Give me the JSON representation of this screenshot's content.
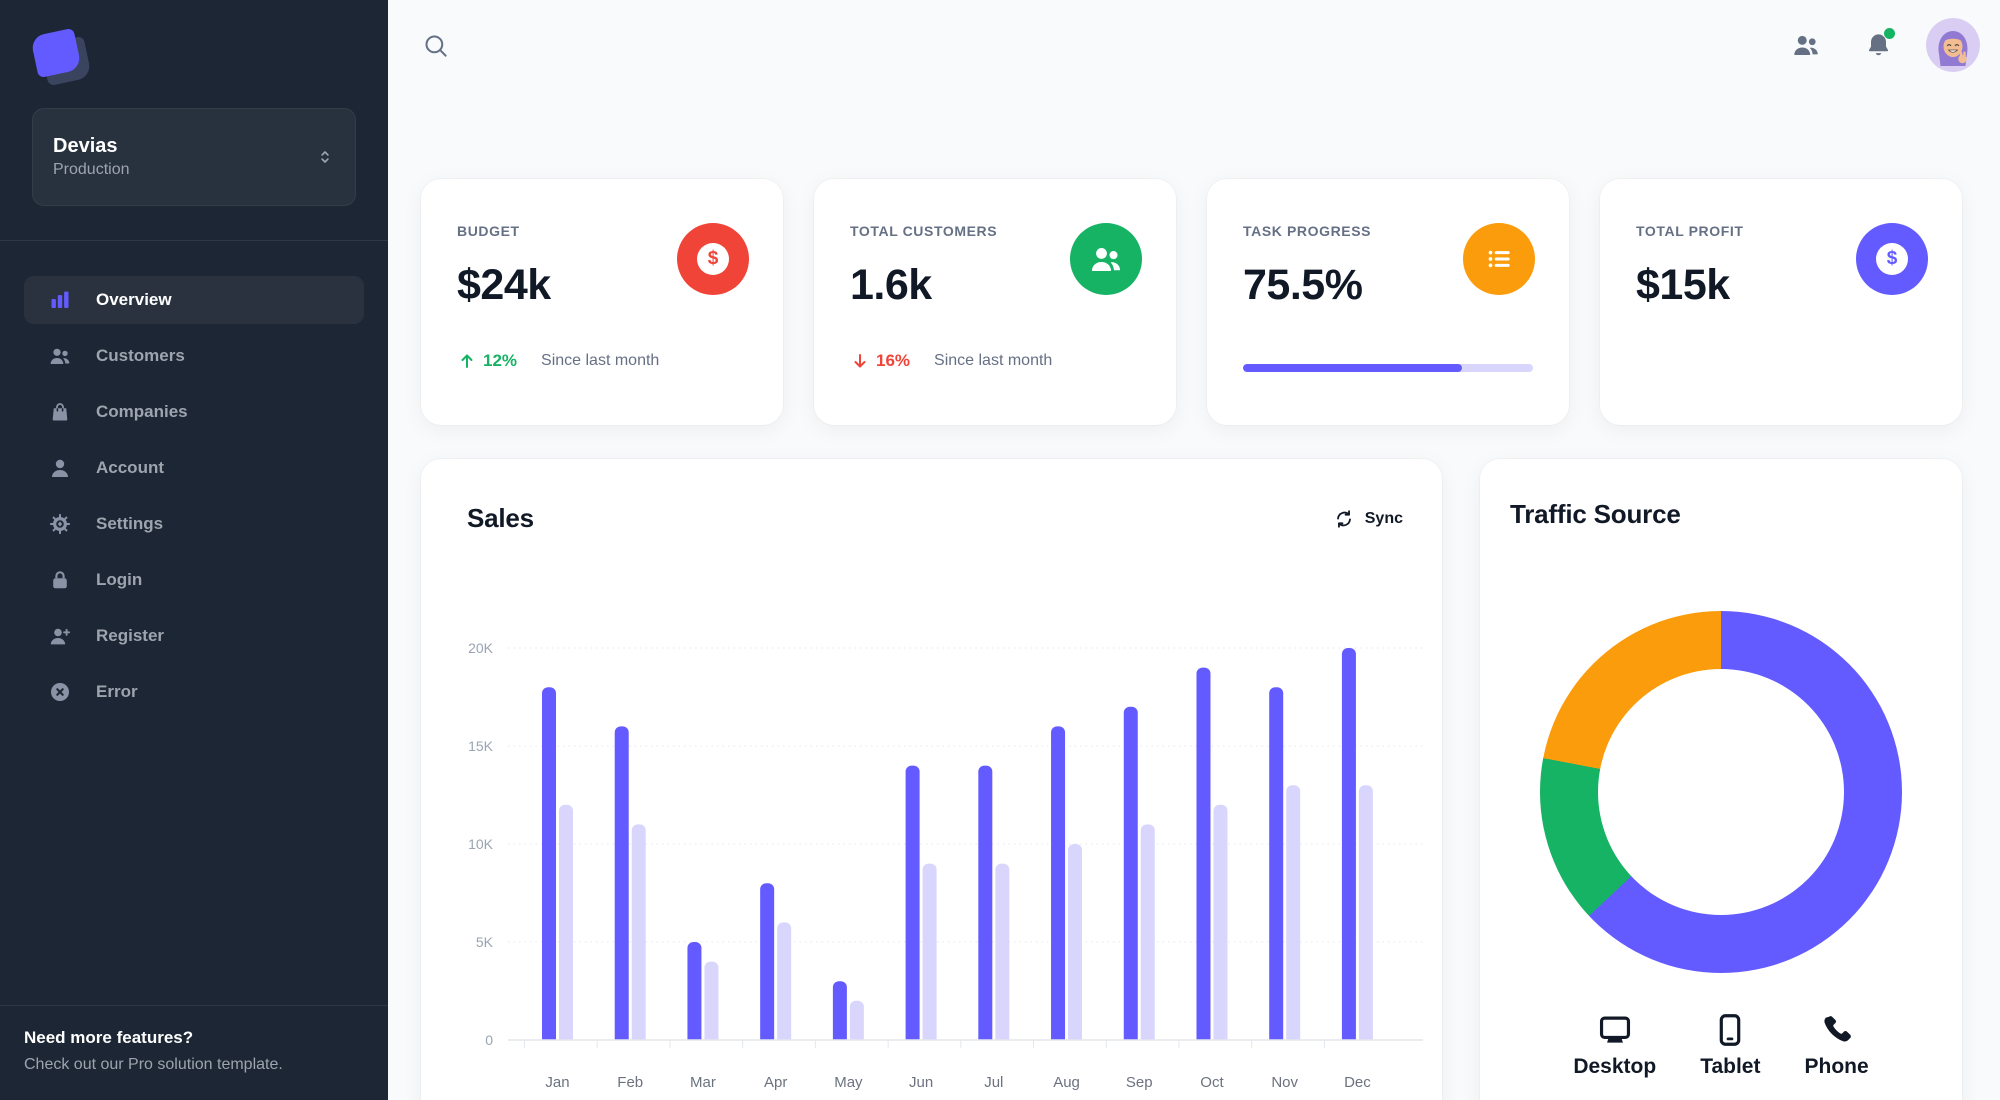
{
  "colors": {
    "primary": "#635bff",
    "success": "#16b364",
    "warning": "#fb9c0c",
    "error": "#f04438",
    "sidebar_bg": "#1d2634",
    "page_bg": "#f9fafb"
  },
  "sidebar": {
    "workspace": {
      "name": "Devias",
      "environment": "Production"
    },
    "nav": [
      {
        "label": "Overview",
        "icon": "chart-bar-icon",
        "active": true
      },
      {
        "label": "Customers",
        "icon": "users-icon",
        "active": false
      },
      {
        "label": "Companies",
        "icon": "shopping-bag-icon",
        "active": false
      },
      {
        "label": "Account",
        "icon": "user-icon",
        "active": false
      },
      {
        "label": "Settings",
        "icon": "gear-icon",
        "active": false
      },
      {
        "label": "Login",
        "icon": "lock-icon",
        "active": false
      },
      {
        "label": "Register",
        "icon": "user-plus-icon",
        "active": false
      },
      {
        "label": "Error",
        "icon": "x-circle-icon",
        "active": false
      }
    ],
    "footer": {
      "title": "Need more features?",
      "subtitle": "Check out our Pro solution template."
    }
  },
  "topbar": {
    "icons": [
      "search",
      "contacts",
      "notifications",
      "avatar"
    ],
    "notification_badge_color": "#16b364"
  },
  "stats": [
    {
      "label": "BUDGET",
      "value": "$24k",
      "icon": "currency-dollar-icon",
      "icon_bg": "#f04438",
      "trend_direction": "up",
      "trend_value": "12%",
      "trend_color": "#16b364",
      "caption": "Since last month"
    },
    {
      "label": "TOTAL CUSTOMERS",
      "value": "1.6k",
      "icon": "users-icon",
      "icon_bg": "#16b364",
      "trend_direction": "down",
      "trend_value": "16%",
      "trend_color": "#f04438",
      "caption": "Since last month"
    },
    {
      "label": "TASK PROGRESS",
      "value": "75.5%",
      "icon": "list-bullet-icon",
      "icon_bg": "#fb9c0c",
      "progress_percent": 75.5,
      "progress_color": "#635bff",
      "progress_track_color": "#d9d6fe"
    },
    {
      "label": "TOTAL PROFIT",
      "value": "$15k",
      "icon": "currency-dollar-icon",
      "icon_bg": "#635bff"
    }
  ],
  "sales": {
    "title": "Sales",
    "sync_label": "Sync"
  },
  "traffic": {
    "title": "Traffic Source"
  },
  "chart_data": [
    {
      "type": "bar",
      "title": "Sales",
      "categories": [
        "Jan",
        "Feb",
        "Mar",
        "Apr",
        "May",
        "Jun",
        "Jul",
        "Aug",
        "Sep",
        "Oct",
        "Nov",
        "Dec"
      ],
      "series": [
        {
          "name": "primary",
          "color": "#635bff",
          "values": [
            18,
            16,
            5,
            8,
            3,
            14,
            14,
            16,
            17,
            19,
            18,
            20
          ]
        },
        {
          "name": "secondary",
          "color": "#d9d6fe",
          "values": [
            12,
            11,
            4,
            6,
            2,
            9,
            9,
            10,
            11,
            12,
            13,
            13
          ]
        }
      ],
      "unit": "K",
      "ylim": [
        0,
        20
      ],
      "yticks": [
        {
          "label": "0",
          "value": 0
        },
        {
          "label": "5K",
          "value": 5
        },
        {
          "label": "10K",
          "value": 10
        },
        {
          "label": "15K",
          "value": 15
        },
        {
          "label": "20K",
          "value": 20
        }
      ],
      "grid": "dotted-horizontal",
      "legend_position": "none"
    },
    {
      "type": "donut",
      "title": "Traffic Source",
      "labels": [
        "Desktop",
        "Tablet",
        "Phone"
      ],
      "values": [
        63,
        15,
        22
      ],
      "colors": [
        "#635bff",
        "#16b364",
        "#fb9c0c"
      ],
      "legend_position": "bottom"
    }
  ]
}
